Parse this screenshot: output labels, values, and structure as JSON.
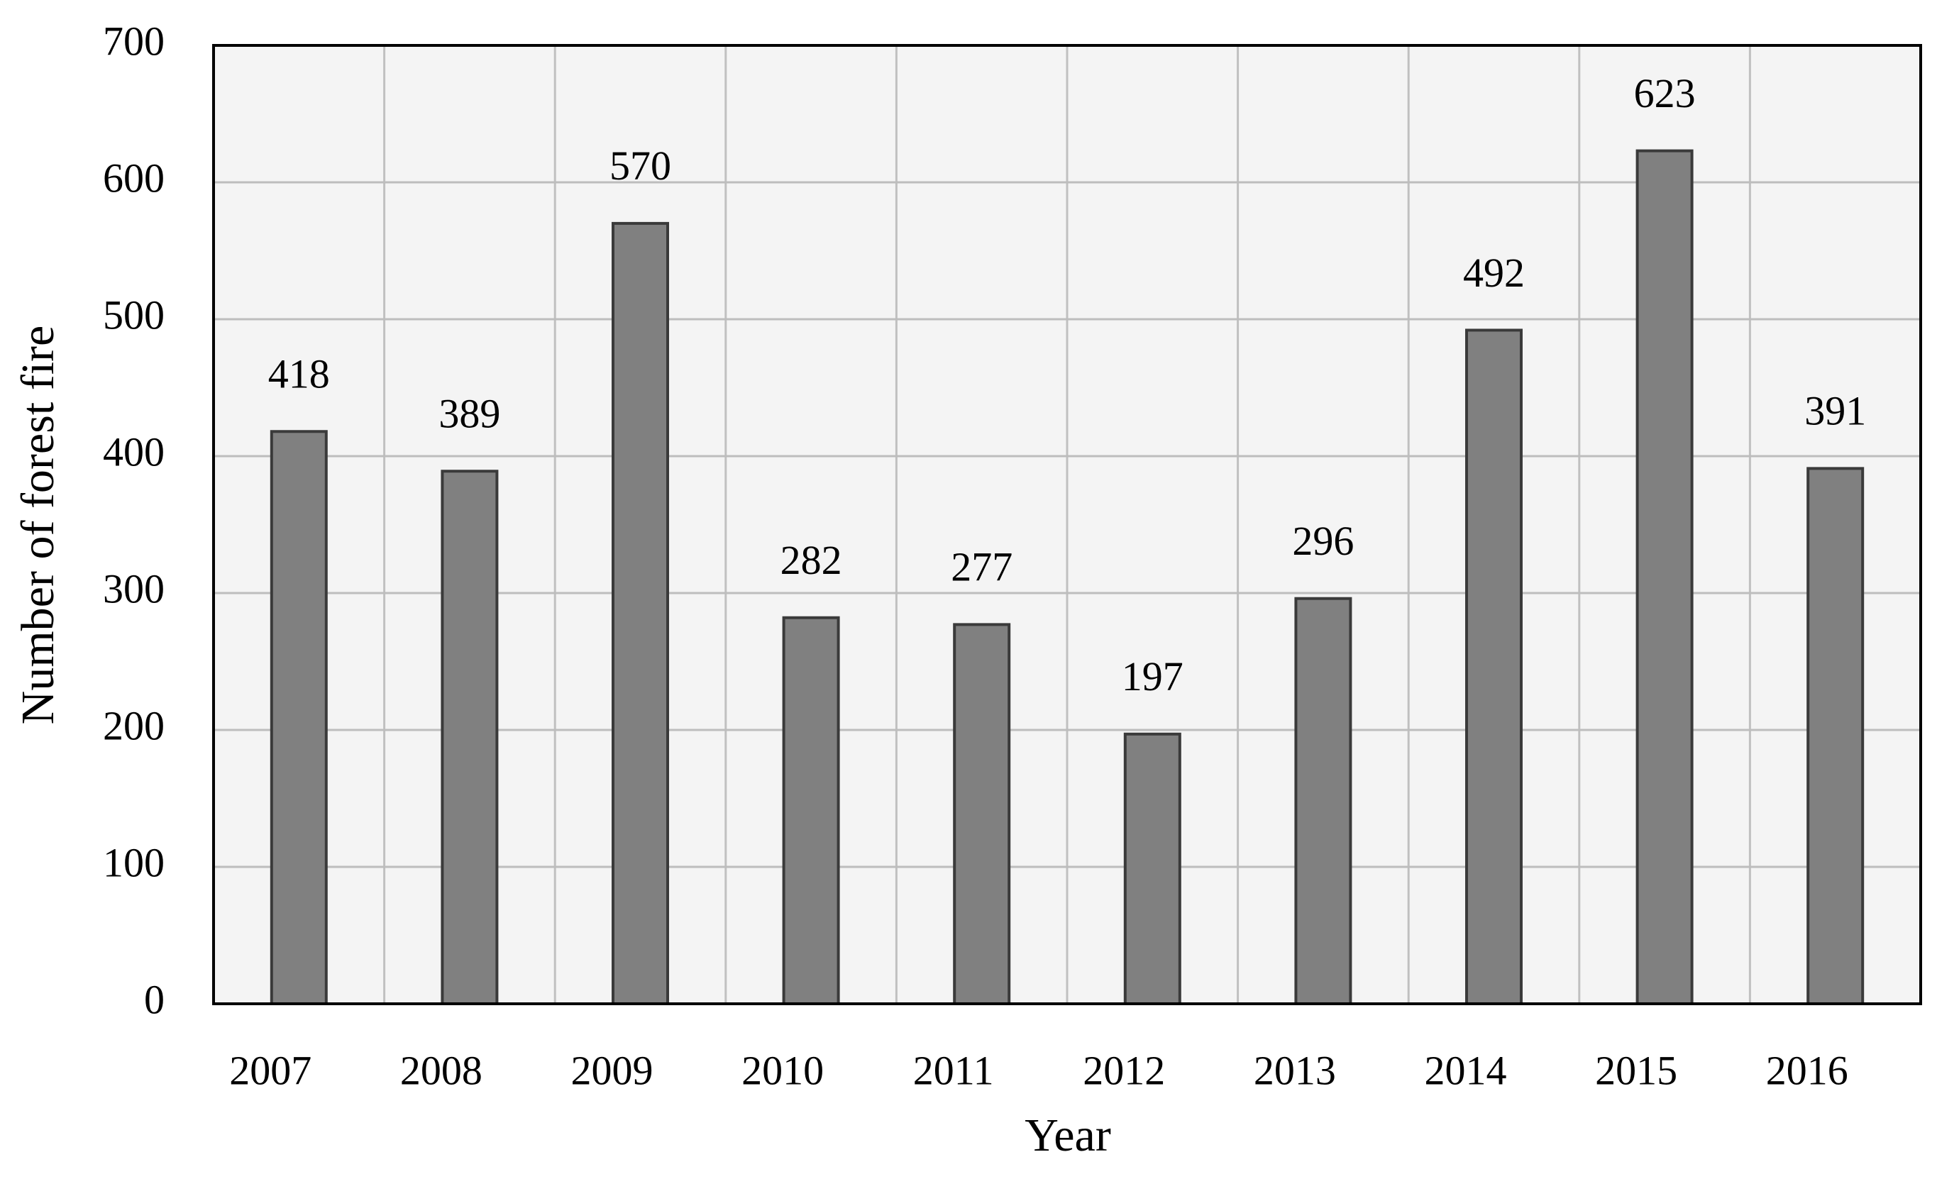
{
  "chart_data": {
    "type": "bar",
    "x_label": "Year",
    "y_label": "Number of forest fire",
    "categories": [
      "2007",
      "2008",
      "2009",
      "2010",
      "2011",
      "2012",
      "2013",
      "2014",
      "2015",
      "2016"
    ],
    "values": [
      418,
      389,
      570,
      282,
      277,
      197,
      296,
      492,
      623,
      391
    ],
    "color": "#808080",
    "ylim": [
      0,
      700
    ],
    "yticks": [
      0,
      100,
      200,
      300,
      400,
      500,
      600,
      700
    ],
    "grid": true
  }
}
